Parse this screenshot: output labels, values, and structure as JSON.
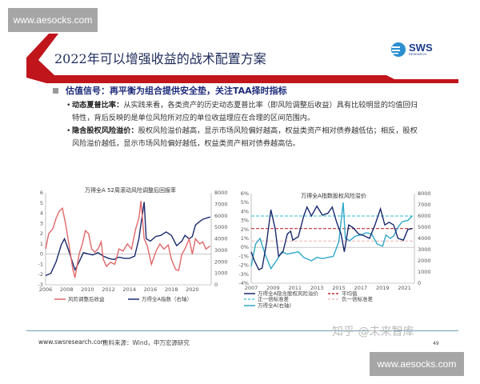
{
  "watermarks": [
    "www.aesocks.com",
    "www.aesocks.com"
  ],
  "slide": {
    "title": "2022年可以增强收益的战术配置方案",
    "logo": {
      "name": "SWS",
      "sub": "RESEARCH"
    },
    "heading": "估值信号：再平衡为组合提供安全垫，关注TAA择时指标",
    "bullets": [
      {
        "term": "动态夏普比率：",
        "text": "从实践来看，各类资产的历史动态夏普比率（即风险调整后收益）具有比较明显的均值回归特性，背后反映的是单位风险所对应的单位收益理应在合理的区间范围内。"
      },
      {
        "term": "隐含股权风险溢价：",
        "text": "股权风险溢价越高，显示市场风险偏好越高，权益类资产相对债券越低估；相反，股权风险溢价越低，显示市场风险偏好越低，权益类资产相对债券越高估。"
      }
    ],
    "footer": {
      "site": "www.swsresearch.com",
      "source": "资料来源：Wind，申万宏源研究",
      "page": "49",
      "overlay": "知乎 @未来智库"
    }
  },
  "colors": {
    "brand_red": "#c0151b",
    "navy": "#1a2a6c",
    "red_series": "#e0686a",
    "light_blue": "#2fa8c8"
  },
  "chart_data": [
    {
      "type": "line",
      "title": "万得全A 52周滚动风险调整后回报率",
      "xlim": [
        2006,
        2021.8
      ],
      "xticks": [
        "2006",
        "2008",
        "2010",
        "2012",
        "2014",
        "2016",
        "2018",
        "2020"
      ],
      "ylim": [
        -3,
        6
      ],
      "yticks": [
        "-3",
        "-2",
        "-1",
        "0",
        "1",
        "2",
        "3",
        "4",
        "5",
        "6"
      ],
      "y2lim": [
        0,
        8000
      ],
      "y2ticks": [
        "0",
        "1000",
        "2000",
        "3000",
        "4000",
        "5000",
        "6000",
        "7000",
        "8000"
      ],
      "legend": "bottom",
      "series": [
        {
          "name": "风险调整后收益",
          "axis": "left",
          "color": "#e0686a",
          "x": [
            2006,
            2006.3,
            2006.7,
            2007,
            2007.3,
            2007.6,
            2007.9,
            2008.3,
            2008.6,
            2008.8,
            2009.2,
            2009.5,
            2009.8,
            2010.1,
            2010.4,
            2010.7,
            2011,
            2011.3,
            2011.5,
            2011.8,
            2012.2,
            2012.6,
            2013,
            2013.4,
            2013.8,
            2014.2,
            2014.6,
            2014.9,
            2015.1,
            2015.4,
            2015.7,
            2016.1,
            2016.5,
            2016.9,
            2017.3,
            2017.7,
            2018,
            2018.4,
            2018.7,
            2019,
            2019.3,
            2019.7,
            2020,
            2020.3,
            2020.7,
            2021,
            2021.3,
            2021.7
          ],
          "y": [
            0.5,
            2,
            2.5,
            3.5,
            4.2,
            4.5,
            3,
            0.5,
            -1.5,
            -2.3,
            0,
            1,
            2.3,
            2,
            0.5,
            0.2,
            0.5,
            1.2,
            -0.5,
            -1.2,
            -0.8,
            -1,
            0.5,
            0.3,
            1,
            0.5,
            2.5,
            3.5,
            5.2,
            1.5,
            0.8,
            -1,
            0.2,
            1,
            0.5,
            0.9,
            -0.5,
            -1.5,
            -1.6,
            0,
            0.5,
            1.5,
            0,
            1.5,
            1,
            1.2,
            0.5,
            0.8
          ]
        },
        {
          "name": "万得全A指数（右轴）",
          "axis": "right",
          "color": "#1a2a6c",
          "x": [
            2006,
            2006.5,
            2007,
            2007.5,
            2007.8,
            2008.2,
            2008.8,
            2009.2,
            2009.6,
            2010,
            2010.5,
            2011,
            2011.5,
            2012,
            2012.5,
            2013,
            2013.5,
            2014,
            2014.5,
            2014.9,
            2015.4,
            2015.6,
            2016,
            2016.5,
            2017,
            2017.5,
            2018,
            2018.5,
            2019,
            2019.3,
            2019.7,
            2020,
            2020.3,
            2020.7,
            2021,
            2021.7
          ],
          "y": [
            800,
            1000,
            2000,
            3500,
            4000,
            3000,
            1300,
            2000,
            2800,
            2700,
            2600,
            2800,
            2500,
            2300,
            2200,
            2400,
            2300,
            2300,
            2500,
            4000,
            7200,
            4000,
            3800,
            4200,
            4300,
            4600,
            4300,
            3400,
            3800,
            4300,
            4000,
            4200,
            5200,
            5500,
            5700,
            5900
          ]
        }
      ]
    },
    {
      "type": "line",
      "title": "万得全A指数股权风险溢价",
      "xlim": [
        2007,
        2021.9
      ],
      "xticks": [
        "2007",
        "2009",
        "2011",
        "2013",
        "2015",
        "2017",
        "2019",
        "2021"
      ],
      "ylim": [
        -4,
        6
      ],
      "yticks": [
        "-4%",
        "-3%",
        "-2%",
        "-1%",
        "0%",
        "1%",
        "2%",
        "3%",
        "4%",
        "5%",
        "6%"
      ],
      "y2lim": [
        0,
        8000
      ],
      "y2ticks": [
        "0",
        "1000",
        "2000",
        "3000",
        "4000",
        "5000",
        "6000",
        "7000",
        "8000"
      ],
      "legend": "bottom",
      "hlines": [
        {
          "name": "平均值",
          "value": 2.1,
          "color": "#c03030"
        },
        {
          "name": "正一倍标准差",
          "value": 3.5,
          "color": "#58c8dc"
        },
        {
          "name": "负一倍标准差",
          "value": 0.7,
          "color": "#f0c0c0"
        }
      ],
      "series": [
        {
          "name": "万得全A隐含股权风险溢价",
          "axis": "left",
          "color": "#1a2a6c",
          "x": [
            2007,
            2007.3,
            2007.7,
            2008,
            2008.4,
            2008.8,
            2009.2,
            2009.5,
            2009.9,
            2010.3,
            2010.6,
            2010.8,
            2011.3,
            2011.8,
            2012.1,
            2012.5,
            2013,
            2013.5,
            2014,
            2014.4,
            2014.8,
            2015.2,
            2015.5,
            2015.9,
            2016.3,
            2016.8,
            2017.3,
            2017.8,
            2018.3,
            2018.8,
            2019.2,
            2019.6,
            2020,
            2020.4,
            2020.9,
            2021.3,
            2021.7
          ],
          "y": [
            -0.5,
            -1.5,
            -2.5,
            -2.3,
            0.5,
            4.2,
            2,
            -1,
            -0.5,
            1.5,
            1.8,
            0.8,
            1.2,
            3.5,
            4.5,
            3.5,
            4.6,
            3.6,
            3.8,
            4.5,
            2.8,
            1.5,
            -0.5,
            2.5,
            2.2,
            1.5,
            1.3,
            1,
            2.5,
            4.3,
            2.5,
            2.8,
            2.5,
            1,
            0.8,
            2,
            2.1
          ]
        },
        {
          "name": "万得全A(右轴)",
          "axis": "right",
          "color": "#2fa8c8",
          "x": [
            2007,
            2007.4,
            2007.8,
            2008.3,
            2008.8,
            2009.3,
            2009.8,
            2010.3,
            2010.8,
            2011.3,
            2011.8,
            2012.5,
            2013,
            2013.5,
            2014,
            2014.5,
            2015,
            2015.4,
            2015.6,
            2016,
            2016.5,
            2017,
            2017.5,
            2018,
            2018.5,
            2019,
            2019.3,
            2019.7,
            2020,
            2020.4,
            2020.8,
            2021.3,
            2021.7
          ],
          "y": [
            1500,
            3500,
            4000,
            2500,
            1300,
            2000,
            2800,
            2600,
            2700,
            2800,
            2300,
            2000,
            2300,
            2200,
            2300,
            2400,
            3700,
            7200,
            4000,
            3800,
            4200,
            4300,
            4500,
            4400,
            3500,
            3300,
            4300,
            4000,
            4200,
            5000,
            5500,
            5600,
            6000
          ]
        }
      ]
    }
  ]
}
